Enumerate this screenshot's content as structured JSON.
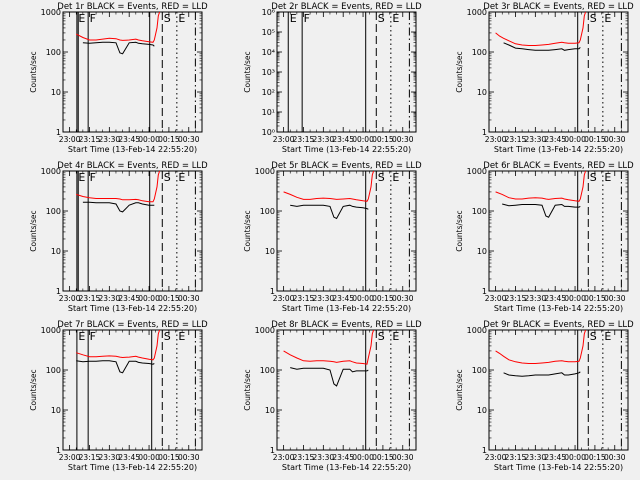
{
  "chart_data": [
    {
      "type": "line",
      "title": "Det 1r BLACK = Events, RED = LLD",
      "xlabel": "Start Time (13-Feb-14 22:55:20)",
      "ylabel": "Counts/sec",
      "x_ticks": [
        "23:00",
        "23:15",
        "23:30",
        "23:45",
        "00:00",
        "00:15",
        "00:30"
      ],
      "y_scale": "log",
      "ylim": [
        1,
        1000
      ],
      "y_ticks": [
        "1",
        "10",
        "100",
        "1000"
      ],
      "x_minutes": [
        0,
        5,
        10,
        15,
        20,
        25,
        30,
        35,
        38,
        40,
        45,
        50,
        52,
        55,
        60,
        63,
        64,
        66,
        67,
        68
      ],
      "series": [
        {
          "name": "Events",
          "color": "#000000",
          "values": [
            null,
            null,
            170,
            165,
            170,
            175,
            175,
            170,
            95,
            90,
            170,
            175,
            165,
            160,
            155,
            150,
            140,
            null,
            null,
            null
          ]
        },
        {
          "name": "LLD",
          "color": "#ff0000",
          "values": [
            null,
            280,
            230,
            200,
            200,
            210,
            220,
            215,
            200,
            195,
            200,
            210,
            200,
            190,
            180,
            175,
            200,
            400,
            800,
            1000
          ]
        }
      ],
      "markers": [
        {
          "label": "E",
          "minute": 5.5,
          "style": "solid"
        },
        {
          "label": "F",
          "minute": 14,
          "style": "solid"
        },
        {
          "label": "S",
          "minute": 70,
          "style": "dashed"
        },
        {
          "label": "E",
          "minute": 81,
          "style": "dotted"
        },
        {
          "label": "",
          "minute": 95,
          "style": "dashdot"
        }
      ],
      "vlines_extra": [
        6.5,
        60.5
      ]
    },
    {
      "type": "line",
      "title": "Det 2r BLACK = Events, RED = LLD",
      "xlabel": "Start Time (13-Feb-14 22:55:20)",
      "ylabel": "Counts/sec",
      "x_ticks": [
        "23:00",
        "23:15",
        "23:30",
        "23:45",
        "00:00",
        "00:15",
        "00:30"
      ],
      "y_scale": "log",
      "ylim": [
        1,
        1000000
      ],
      "y_ticks": [
        "10⁰",
        "10¹",
        "10²",
        "10³",
        "10⁴",
        "10⁵",
        "10⁶"
      ],
      "x_minutes": [],
      "series": [],
      "markers": [
        {
          "label": "E",
          "minute": 3.5,
          "style": "solid"
        },
        {
          "label": "F",
          "minute": 14,
          "style": "solid"
        },
        {
          "label": "S",
          "minute": 70,
          "style": "dashed"
        },
        {
          "label": "E",
          "minute": 81,
          "style": "dotted"
        },
        {
          "label": "",
          "minute": 95,
          "style": "dashdot"
        }
      ],
      "vlines_extra": [
        62
      ]
    },
    {
      "type": "line",
      "title": "Det 3r BLACK = Events, RED = LLD",
      "xlabel": "Start Time (13-Feb-14 22:55:20)",
      "ylabel": "Counts/sec",
      "x_ticks": [
        "23:00",
        "23:15",
        "23:30",
        "23:45",
        "00:00",
        "00:15",
        "00:30"
      ],
      "y_scale": "log",
      "ylim": [
        1,
        1000
      ],
      "y_ticks": [
        "1",
        "10",
        "100",
        "1000"
      ],
      "x_minutes": [
        0,
        3,
        6,
        10,
        15,
        20,
        25,
        30,
        35,
        40,
        45,
        50,
        52,
        55,
        60,
        63,
        64,
        66,
        67,
        68
      ],
      "series": [
        {
          "name": "Events",
          "color": "#000000",
          "values": [
            null,
            null,
            170,
            150,
            125,
            120,
            115,
            110,
            110,
            110,
            115,
            120,
            110,
            115,
            120,
            120,
            130,
            null,
            null,
            null
          ]
        },
        {
          "name": "LLD",
          "color": "#ff0000",
          "values": [
            300,
            250,
            220,
            190,
            160,
            150,
            145,
            145,
            150,
            155,
            165,
            175,
            170,
            165,
            165,
            170,
            200,
            400,
            800,
            1000
          ]
        }
      ],
      "markers": [
        {
          "label": "",
          "minute": 62,
          "style": "solid"
        },
        {
          "label": "S",
          "minute": 70,
          "style": "dashed"
        },
        {
          "label": "E",
          "minute": 81,
          "style": "dotted"
        },
        {
          "label": "",
          "minute": 95,
          "style": "dashdot"
        }
      ],
      "vlines_extra": []
    },
    {
      "type": "line",
      "title": "Det 4r BLACK = Events, RED = LLD",
      "xlabel": "Start Time (13-Feb-14 22:55:20)",
      "ylabel": "Counts/sec",
      "x_ticks": [
        "23:00",
        "23:15",
        "23:30",
        "23:45",
        "00:00",
        "00:15",
        "00:30"
      ],
      "y_scale": "log",
      "ylim": [
        1,
        1000
      ],
      "y_ticks": [
        "1",
        "10",
        "100",
        "1000"
      ],
      "x_minutes": [
        0,
        5,
        10,
        15,
        20,
        25,
        30,
        35,
        38,
        40,
        45,
        50,
        52,
        55,
        60,
        63,
        64,
        66,
        67,
        68
      ],
      "series": [
        {
          "name": "Events",
          "color": "#000000",
          "values": [
            null,
            null,
            165,
            165,
            160,
            160,
            160,
            150,
            100,
            95,
            140,
            160,
            160,
            150,
            140,
            140,
            140,
            null,
            null,
            null
          ]
        },
        {
          "name": "LLD",
          "color": "#ff0000",
          "values": [
            null,
            260,
            230,
            215,
            205,
            205,
            205,
            205,
            200,
            190,
            190,
            195,
            190,
            180,
            170,
            170,
            200,
            400,
            800,
            1000
          ]
        }
      ],
      "markers": [
        {
          "label": "E",
          "minute": 5.5,
          "style": "solid"
        },
        {
          "label": "F",
          "minute": 14,
          "style": "solid"
        },
        {
          "label": "S",
          "minute": 70,
          "style": "dashed"
        },
        {
          "label": "E",
          "minute": 81,
          "style": "dotted"
        },
        {
          "label": "",
          "minute": 95,
          "style": "dashdot"
        }
      ],
      "vlines_extra": [
        6.5,
        60.5
      ]
    },
    {
      "type": "line",
      "title": "Det 5r BLACK = Events, RED = LLD",
      "xlabel": "Start Time (13-Feb-14 22:55:20)",
      "ylabel": "Counts/sec",
      "x_ticks": [
        "23:00",
        "23:15",
        "23:30",
        "23:45",
        "00:00",
        "00:15",
        "00:30"
      ],
      "y_scale": "log",
      "ylim": [
        1,
        1000
      ],
      "y_ticks": [
        "1",
        "10",
        "100",
        "1000"
      ],
      "x_minutes": [
        0,
        5,
        10,
        15,
        20,
        25,
        30,
        35,
        38,
        40,
        45,
        50,
        52,
        55,
        60,
        63,
        64,
        66,
        67,
        68
      ],
      "series": [
        {
          "name": "Events",
          "color": "#000000",
          "values": [
            null,
            140,
            130,
            140,
            140,
            140,
            140,
            130,
            70,
            65,
            130,
            140,
            130,
            125,
            120,
            115,
            110,
            null,
            null,
            null
          ]
        },
        {
          "name": "LLD",
          "color": "#ff0000",
          "values": [
            300,
            260,
            220,
            195,
            195,
            205,
            210,
            205,
            200,
            195,
            200,
            205,
            200,
            190,
            180,
            175,
            200,
            400,
            800,
            1000
          ]
        }
      ],
      "markers": [
        {
          "label": "",
          "minute": 62,
          "style": "solid"
        },
        {
          "label": "S",
          "minute": 70,
          "style": "dashed"
        },
        {
          "label": "E",
          "minute": 81,
          "style": "dotted"
        },
        {
          "label": "",
          "minute": 95,
          "style": "dashdot"
        }
      ],
      "vlines_extra": []
    },
    {
      "type": "line",
      "title": "Det 6r BLACK = Events, RED = LLD",
      "xlabel": "Start Time (13-Feb-14 22:55:20)",
      "ylabel": "Counts/sec",
      "x_ticks": [
        "23:00",
        "23:15",
        "23:30",
        "23:45",
        "00:00",
        "00:15",
        "00:30"
      ],
      "y_scale": "log",
      "ylim": [
        1,
        1000
      ],
      "y_ticks": [
        "1",
        "10",
        "100",
        "1000"
      ],
      "x_minutes": [
        0,
        5,
        10,
        15,
        20,
        25,
        30,
        35,
        38,
        40,
        45,
        50,
        52,
        55,
        60,
        63,
        64,
        66,
        67,
        68
      ],
      "series": [
        {
          "name": "Events",
          "color": "#000000",
          "values": [
            null,
            150,
            135,
            140,
            145,
            145,
            145,
            140,
            75,
            70,
            140,
            145,
            130,
            130,
            125,
            125,
            130,
            null,
            null,
            null
          ]
        },
        {
          "name": "LLD",
          "color": "#ff0000",
          "values": [
            300,
            260,
            215,
            200,
            200,
            210,
            215,
            210,
            200,
            195,
            205,
            210,
            200,
            190,
            180,
            175,
            200,
            400,
            800,
            1000
          ]
        }
      ],
      "markers": [
        {
          "label": "",
          "minute": 62,
          "style": "solid"
        },
        {
          "label": "S",
          "minute": 70,
          "style": "dashed"
        },
        {
          "label": "E",
          "minute": 81,
          "style": "dotted"
        },
        {
          "label": "",
          "minute": 95,
          "style": "dashdot"
        }
      ],
      "vlines_extra": []
    },
    {
      "type": "line",
      "title": "Det 7r BLACK = Events, RED = LLD",
      "xlabel": "Start Time (13-Feb-14 22:55:20)",
      "ylabel": "Counts/sec",
      "x_ticks": [
        "23:00",
        "23:15",
        "23:30",
        "23:45",
        "00:00",
        "00:15",
        "00:30"
      ],
      "y_scale": "log",
      "ylim": [
        1,
        1000
      ],
      "y_ticks": [
        "1",
        "10",
        "100",
        "1000"
      ],
      "x_minutes": [
        0,
        5,
        10,
        15,
        20,
        25,
        30,
        35,
        38,
        40,
        45,
        50,
        52,
        55,
        60,
        63,
        64,
        66,
        67,
        68
      ],
      "series": [
        {
          "name": "Events",
          "color": "#000000",
          "values": [
            null,
            170,
            160,
            165,
            165,
            170,
            170,
            160,
            90,
            85,
            165,
            165,
            155,
            150,
            145,
            140,
            145,
            null,
            null,
            null
          ]
        },
        {
          "name": "LLD",
          "color": "#ff0000",
          "values": [
            null,
            270,
            240,
            215,
            215,
            220,
            225,
            220,
            210,
            205,
            210,
            220,
            210,
            200,
            185,
            180,
            200,
            400,
            800,
            1000
          ]
        }
      ],
      "markers": [
        {
          "label": "E",
          "minute": 5.5,
          "style": "solid"
        },
        {
          "label": "F",
          "minute": 14,
          "style": "solid"
        },
        {
          "label": "S",
          "minute": 70,
          "style": "dashed"
        },
        {
          "label": "E",
          "minute": 81,
          "style": "dotted"
        },
        {
          "label": "",
          "minute": 95,
          "style": "dashdot"
        }
      ],
      "vlines_extra": [
        62
      ]
    },
    {
      "type": "line",
      "title": "Det 8r BLACK = Events, RED = LLD",
      "xlabel": "Start Time (13-Feb-14 22:55:20)",
      "ylabel": "Counts/sec",
      "x_ticks": [
        "23:00",
        "23:15",
        "23:30",
        "23:45",
        "00:00",
        "00:15",
        "00:30"
      ],
      "y_scale": "log",
      "ylim": [
        1,
        1000
      ],
      "y_ticks": [
        "1",
        "10",
        "100",
        "1000"
      ],
      "x_minutes": [
        0,
        5,
        10,
        15,
        20,
        25,
        30,
        35,
        38,
        40,
        45,
        50,
        52,
        55,
        60,
        63,
        64,
        66,
        67,
        68
      ],
      "series": [
        {
          "name": "Events",
          "color": "#000000",
          "values": [
            null,
            115,
            105,
            110,
            110,
            110,
            110,
            100,
            45,
            40,
            105,
            105,
            90,
            95,
            95,
            95,
            100,
            null,
            null,
            null
          ]
        },
        {
          "name": "LLD",
          "color": "#ff0000",
          "values": [
            300,
            240,
            200,
            170,
            165,
            170,
            170,
            165,
            160,
            155,
            165,
            170,
            160,
            150,
            145,
            140,
            200,
            400,
            800,
            1000
          ]
        }
      ],
      "markers": [
        {
          "label": "",
          "minute": 62,
          "style": "solid"
        },
        {
          "label": "S",
          "minute": 70,
          "style": "dashed"
        },
        {
          "label": "E",
          "minute": 81,
          "style": "dotted"
        },
        {
          "label": "",
          "minute": 95,
          "style": "dashdot"
        }
      ],
      "vlines_extra": []
    },
    {
      "type": "line",
      "title": "Det 9r BLACK = Events, RED = LLD",
      "xlabel": "Start Time (13-Feb-14 22:55:20)",
      "ylabel": "Counts/sec",
      "x_ticks": [
        "23:00",
        "23:15",
        "23:30",
        "23:45",
        "00:00",
        "00:15",
        "00:30"
      ],
      "y_scale": "log",
      "ylim": [
        1,
        1000
      ],
      "y_ticks": [
        "1",
        "10",
        "100",
        "1000"
      ],
      "x_minutes": [
        0,
        3,
        6,
        10,
        15,
        20,
        25,
        30,
        35,
        40,
        45,
        50,
        52,
        55,
        60,
        63,
        64,
        66,
        67,
        68
      ],
      "series": [
        {
          "name": "Events",
          "color": "#000000",
          "values": [
            null,
            null,
            85,
            75,
            72,
            70,
            72,
            75,
            75,
            75,
            80,
            85,
            75,
            75,
            80,
            85,
            90,
            null,
            null,
            null
          ]
        },
        {
          "name": "LLD",
          "color": "#ff0000",
          "values": [
            300,
            260,
            220,
            180,
            160,
            150,
            145,
            145,
            150,
            155,
            165,
            170,
            165,
            160,
            160,
            165,
            200,
            400,
            800,
            1000
          ]
        }
      ],
      "markers": [
        {
          "label": "",
          "minute": 62,
          "style": "solid"
        },
        {
          "label": "S",
          "minute": 70,
          "style": "dashed"
        },
        {
          "label": "E",
          "minute": 81,
          "style": "dotted"
        },
        {
          "label": "",
          "minute": 95,
          "style": "dashdot"
        }
      ],
      "vlines_extra": []
    }
  ]
}
